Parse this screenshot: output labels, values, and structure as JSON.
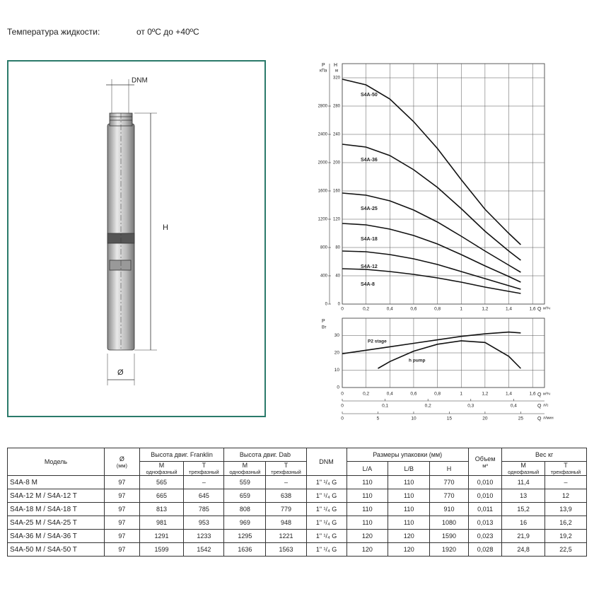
{
  "header": {
    "label": "Температура жидкости:",
    "value": "от 0ºC до +40ºC"
  },
  "drawing": {
    "dnm": "DNM",
    "h": "H",
    "d": "Ø"
  },
  "head_chart": {
    "p_label": "P",
    "p_unit": "кПа",
    "h_label": "H",
    "h_unit": "м",
    "x_label": "Q",
    "x_unit": "м³/ч",
    "xlim": [
      0,
      1.7
    ],
    "ylim": [
      0,
      340
    ],
    "plim": [
      0,
      3400
    ],
    "xticks": [
      0,
      {
        "value": 0.2,
        "label": "0,2"
      },
      {
        "value": 0.4,
        "label": "0,4"
      },
      {
        "value": 0.6,
        "label": "0,6"
      },
      {
        "value": 0.8,
        "label": "0,8"
      },
      1,
      {
        "value": 1.2,
        "label": "1,2"
      },
      {
        "value": 1.4,
        "label": "1,4"
      },
      {
        "value": 1.6,
        "label": "1,6"
      }
    ],
    "hticks": [
      0,
      40,
      80,
      120,
      160,
      200,
      240,
      280,
      320
    ],
    "pticks": [
      0,
      400,
      800,
      1200,
      1600,
      2000,
      2400,
      2800
    ],
    "curves": [
      {
        "name": "S4A-50",
        "q": [
          0,
          0.2,
          0.4,
          0.6,
          0.8,
          1.0,
          1.2,
          1.4,
          1.5
        ],
        "h": [
          318,
          310,
          290,
          258,
          220,
          176,
          134,
          100,
          84
        ]
      },
      {
        "name": "S4A-36",
        "q": [
          0,
          0.2,
          0.4,
          0.6,
          0.8,
          1.0,
          1.2,
          1.4,
          1.5
        ],
        "h": [
          226,
          222,
          210,
          190,
          165,
          135,
          103,
          75,
          62
        ]
      },
      {
        "name": "S4A-25",
        "q": [
          0,
          0.2,
          0.4,
          0.6,
          0.8,
          1.0,
          1.2,
          1.4,
          1.5
        ],
        "h": [
          157,
          154,
          146,
          133,
          116,
          96,
          75,
          55,
          45
        ]
      },
      {
        "name": "S4A-18",
        "q": [
          0,
          0.2,
          0.4,
          0.6,
          0.8,
          1.0,
          1.2,
          1.4,
          1.5
        ],
        "h": [
          114,
          112,
          106,
          97,
          85,
          70,
          54,
          39,
          31
        ]
      },
      {
        "name": "S4A-12",
        "q": [
          0,
          0.2,
          0.4,
          0.6,
          0.8,
          1.0,
          1.2,
          1.4,
          1.5
        ],
        "h": [
          75,
          74,
          70,
          64,
          56,
          46,
          36,
          26,
          21
        ]
      },
      {
        "name": "S4A-8",
        "q": [
          0,
          0.2,
          0.4,
          0.6,
          0.8,
          1.0,
          1.2,
          1.4,
          1.5
        ],
        "h": [
          50,
          49,
          46,
          42,
          37,
          31,
          24,
          18,
          15
        ]
      }
    ]
  },
  "power_chart": {
    "y_label": "P",
    "y_unit": "Вт",
    "ylim": [
      0,
      40
    ],
    "yticks": [
      0,
      10,
      20,
      30
    ],
    "xlim": [
      0,
      1.7
    ],
    "x_label": "Q",
    "x_unit": "м³/ч",
    "xticks": [
      0,
      {
        "value": 0.2,
        "label": "0,2"
      },
      {
        "value": 0.4,
        "label": "0,4"
      },
      {
        "value": 0.6,
        "label": "0,6"
      },
      {
        "value": 0.8,
        "label": "0,8"
      },
      1,
      {
        "value": 1.2,
        "label": "1,2"
      },
      {
        "value": 1.4,
        "label": "1,4"
      },
      {
        "value": 1.6,
        "label": "1,6"
      }
    ],
    "ls_axis": {
      "label": "Q",
      "unit": "л/с",
      "xlim": [
        0,
        0.472
      ],
      "ticks": [
        0,
        {
          "value": 0.1,
          "label": "0,1"
        },
        {
          "value": 0.2,
          "label": "0,2"
        },
        {
          "value": 0.3,
          "label": "0,3"
        },
        {
          "value": 0.4,
          "label": "0,4"
        }
      ]
    },
    "lmin_axis": {
      "label": "Q",
      "unit": "л/мин",
      "xlim": [
        0,
        28.33
      ],
      "ticks": [
        0,
        5,
        10,
        15,
        20,
        25
      ]
    },
    "curves": [
      {
        "name": "P2 stage",
        "q": [
          0,
          0.2,
          0.4,
          0.6,
          0.8,
          1.0,
          1.2,
          1.4,
          1.5
        ],
        "values": [
          19.5,
          21.5,
          23.5,
          25.5,
          27.5,
          29.5,
          31,
          32,
          31.5
        ]
      },
      {
        "name": "h pump",
        "q": [
          0.3,
          0.4,
          0.6,
          0.8,
          1.0,
          1.2,
          1.4,
          1.5
        ],
        "values": [
          11,
          15,
          21,
          25,
          27,
          26,
          18,
          11
        ]
      }
    ]
  },
  "table": {
    "header": {
      "model": "Модель",
      "d": "Ø",
      "d_unit": "(мм)",
      "franklin": "Высота двиг. Franklin",
      "dab": "Высота двиг. Dab",
      "dnm": "DNM",
      "pack": "Размеры упаковки (мм)",
      "volume": "Объем",
      "volume_unit": "м³",
      "weight": "Вес кг",
      "m": "M",
      "m_desc": "однофазный",
      "t": "T",
      "t_desc": "трехфазный",
      "la": "L/A",
      "lb": "L/B",
      "ph": "H"
    },
    "rows": [
      [
        "S4A-8 M",
        "97",
        "565",
        "–",
        "559",
        "–",
        "1\" ¹/₄ G",
        "110",
        "110",
        "770",
        "0,010",
        "11,4",
        "–"
      ],
      [
        "S4A-12 M / S4A-12 T",
        "97",
        "665",
        "645",
        "659",
        "638",
        "1\" ¹/₄ G",
        "110",
        "110",
        "770",
        "0,010",
        "13",
        "12"
      ],
      [
        "S4A-18 M / S4A-18 T",
        "97",
        "813",
        "785",
        "808",
        "779",
        "1\" ¹/₄ G",
        "110",
        "110",
        "910",
        "0,011",
        "15,2",
        "13,9"
      ],
      [
        "S4A-25 M / S4A-25 T",
        "97",
        "981",
        "953",
        "969",
        "948",
        "1\" ¹/₄ G",
        "110",
        "110",
        "1080",
        "0,013",
        "16",
        "16,2"
      ],
      [
        "S4A-36 M / S4A-36 T",
        "97",
        "1291",
        "1233",
        "1295",
        "1221",
        "1\" ¹/₄ G",
        "120",
        "120",
        "1590",
        "0,023",
        "21,9",
        "19,2"
      ],
      [
        "S4A-50 M / S4A-50 T",
        "97",
        "1599",
        "1542",
        "1636",
        "1563",
        "1\" ¹/₄ G",
        "120",
        "120",
        "1920",
        "0,028",
        "24,8",
        "22,5"
      ]
    ]
  }
}
